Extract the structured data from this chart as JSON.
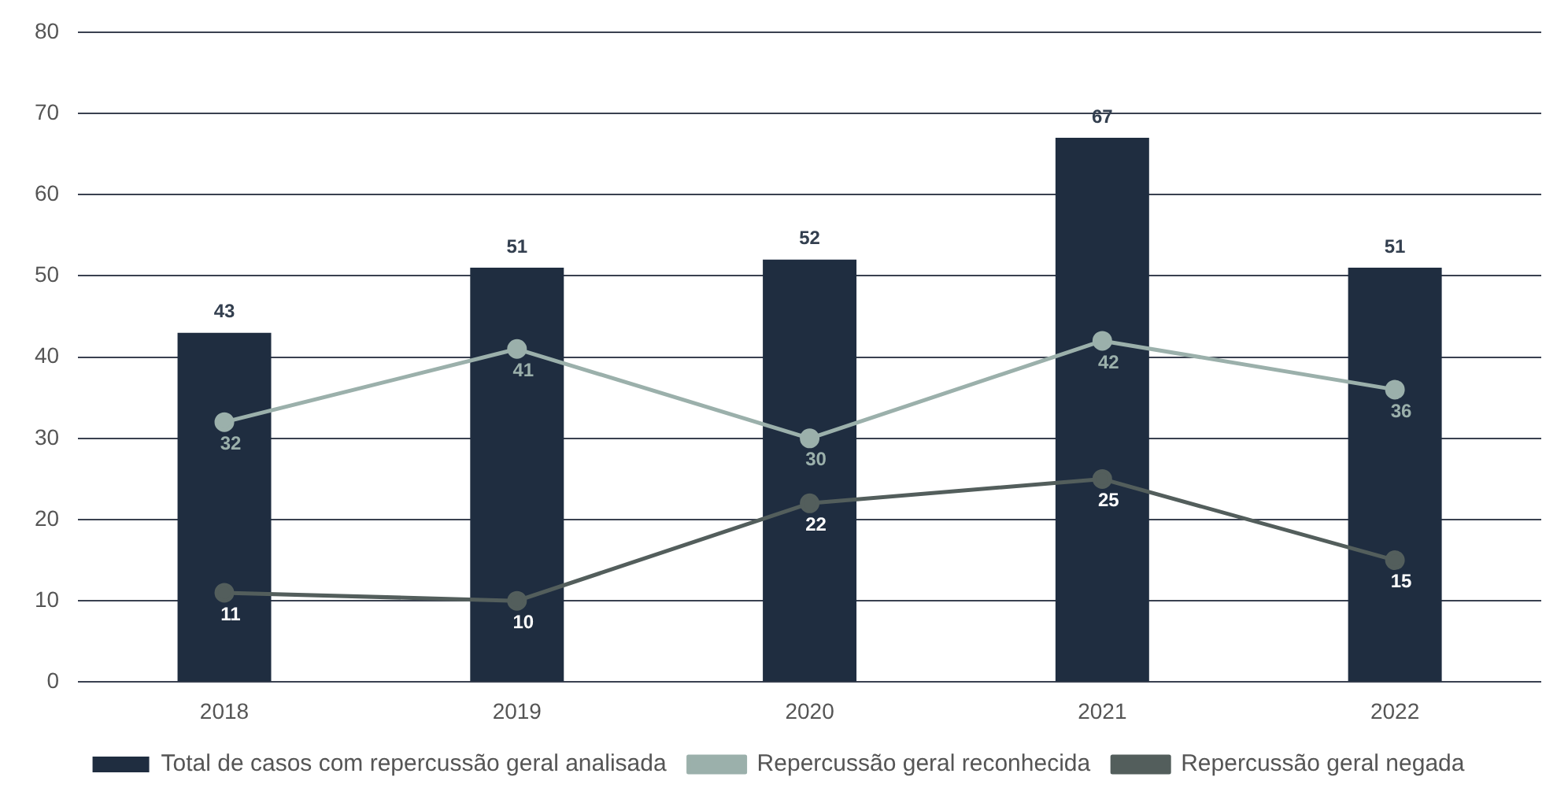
{
  "chart_data": {
    "type": "bar",
    "categories": [
      "2018",
      "2019",
      "2020",
      "2021",
      "2022"
    ],
    "series": [
      {
        "name": "Total de casos com repercussão geral analisada",
        "color": "#1f2d40",
        "values": [
          43,
          51,
          52,
          67,
          51
        ]
      },
      {
        "name": "Repercussão geral reconhecida",
        "type": "line",
        "color": "#9bb0ab",
        "values": [
          32,
          41,
          30,
          42,
          36
        ]
      },
      {
        "name": "Repercussão geral negada",
        "type": "line",
        "color": "#535e5c",
        "values": [
          11,
          10,
          22,
          25,
          15
        ]
      }
    ],
    "ylim": [
      0,
      80
    ],
    "yticks": [
      0,
      10,
      20,
      30,
      40,
      50,
      60,
      70,
      80
    ],
    "grid": "y",
    "legend": "bottom",
    "marker": "circle",
    "line_style": "solid",
    "data_labels": true
  }
}
